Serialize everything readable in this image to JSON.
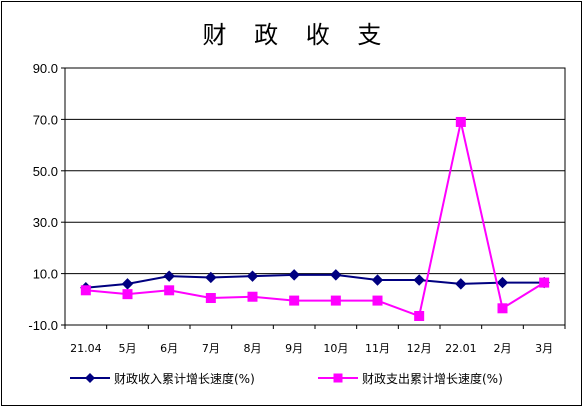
{
  "chart_data": {
    "type": "line",
    "title": "财 政 收 支",
    "xlabel": "",
    "ylabel": "",
    "ylim": [
      -10,
      90
    ],
    "yticks": [
      "90.0",
      "70.0",
      "50.0",
      "30.0",
      "10.0",
      "-10.0"
    ],
    "ytick_values": [
      90,
      70,
      50,
      30,
      10,
      -10
    ],
    "categories": [
      "21.04",
      "5月",
      "6月",
      "7月",
      "8月",
      "9月",
      "10月",
      "11月",
      "12月",
      "22.01",
      "2月",
      "3月"
    ],
    "grid": true,
    "legend_position": "bottom",
    "series": [
      {
        "name": "财政收入累计增长速度(%)",
        "color": "#000080",
        "marker": "diamond",
        "values": [
          4.5,
          6.0,
          9.0,
          8.5,
          9.0,
          9.5,
          9.5,
          7.5,
          7.5,
          6.0,
          6.5,
          6.5
        ]
      },
      {
        "name": "财政支出累计增长速度(%)",
        "color": "#ff00ff",
        "marker": "square",
        "values": [
          3.5,
          2.0,
          3.5,
          0.5,
          1.0,
          -0.5,
          -0.5,
          -0.5,
          -6.5,
          69.0,
          -3.5,
          6.5
        ]
      }
    ]
  }
}
